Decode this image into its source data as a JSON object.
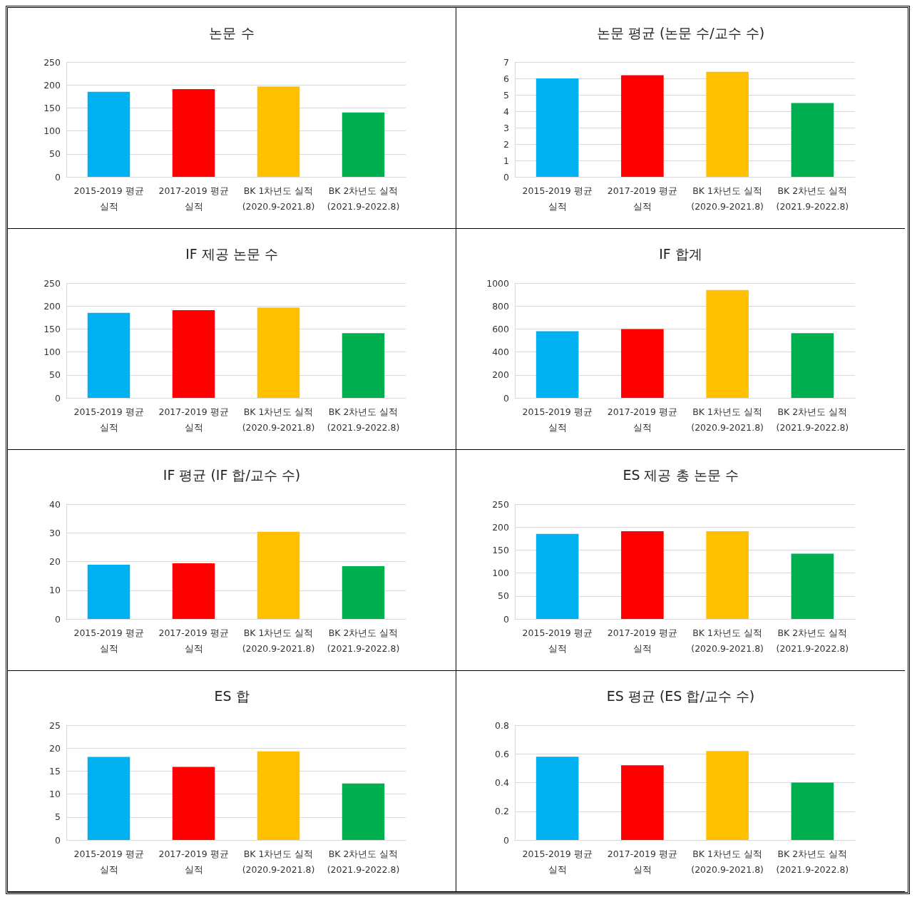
{
  "chart_data": [
    {
      "type": "bar",
      "title": "논문 수",
      "categories": [
        "2015-2019 평균\n실적",
        "2017-2019 평균\n실적",
        "BK 1차년도 실적\n(2020.9-2021.8)",
        "BK 2차년도 실적\n(2021.9-2022.8)"
      ],
      "values": [
        185,
        191,
        197,
        140
      ],
      "colors": [
        "#00b0f0",
        "#ff0000",
        "#ffc000",
        "#00b050"
      ],
      "ylim": [
        0,
        250
      ],
      "yticks": [
        0,
        50,
        100,
        150,
        200,
        250
      ],
      "grid": "y"
    },
    {
      "type": "bar",
      "title": "논문 평균 (논문 수/교수 수)",
      "categories": [
        "2015-2019 평균\n실적",
        "2017-2019 평균\n실적",
        "BK 1차년도 실적\n(2020.9-2021.8)",
        "BK 2차년도 실적\n(2021.9-2022.8)"
      ],
      "values": [
        6.0,
        6.2,
        6.4,
        4.5
      ],
      "colors": [
        "#00b0f0",
        "#ff0000",
        "#ffc000",
        "#00b050"
      ],
      "ylim": [
        0,
        7
      ],
      "yticks": [
        0,
        1,
        2,
        3,
        4,
        5,
        6,
        7
      ],
      "grid": "y"
    },
    {
      "type": "bar",
      "title": "IF 제공 논문 수",
      "categories": [
        "2015-2019 평균\n실적",
        "2017-2019 평균\n실적",
        "BK 1차년도 실적\n(2020.9-2021.8)",
        "BK 2차년도 실적\n(2021.9-2022.8)"
      ],
      "values": [
        185,
        191,
        197,
        141
      ],
      "colors": [
        "#00b0f0",
        "#ff0000",
        "#ffc000",
        "#00b050"
      ],
      "ylim": [
        0,
        250
      ],
      "yticks": [
        0,
        50,
        100,
        150,
        200,
        250
      ],
      "grid": "y"
    },
    {
      "type": "bar",
      "title": "IF 합계",
      "categories": [
        "2015-2019 평균\n실적",
        "2017-2019 평균\n실적",
        "BK 1차년도 실적\n(2020.9-2021.8)",
        "BK 2차년도 실적\n(2021.9-2022.8)"
      ],
      "values": [
        580,
        600,
        940,
        563
      ],
      "colors": [
        "#00b0f0",
        "#ff0000",
        "#ffc000",
        "#00b050"
      ],
      "ylim": [
        0,
        1000
      ],
      "yticks": [
        0,
        200,
        400,
        600,
        800,
        1000
      ],
      "grid": "y"
    },
    {
      "type": "bar",
      "title": "IF 평균 (IF 합/교수 수)",
      "categories": [
        "2015-2019 평균\n실적",
        "2017-2019 평균\n실적",
        "BK 1차년도 실적\n(2020.9-2021.8)",
        "BK 2차년도 실적\n(2021.9-2022.8)"
      ],
      "values": [
        18.9,
        19.4,
        30.4,
        18.4
      ],
      "colors": [
        "#00b0f0",
        "#ff0000",
        "#ffc000",
        "#00b050"
      ],
      "ylim": [
        0,
        40
      ],
      "yticks": [
        0,
        10,
        20,
        30,
        40
      ],
      "grid": "y"
    },
    {
      "type": "bar",
      "title": "ES 제공 총 논문 수",
      "categories": [
        "2015-2019 평균\n실적",
        "2017-2019 평균\n실적",
        "BK 1차년도 실적\n(2020.9-2021.8)",
        "BK 2차년도 실적\n(2021.9-2022.8)"
      ],
      "values": [
        185,
        191,
        191,
        142
      ],
      "colors": [
        "#00b0f0",
        "#ff0000",
        "#ffc000",
        "#00b050"
      ],
      "ylim": [
        0,
        250
      ],
      "yticks": [
        0,
        50,
        100,
        150,
        200,
        250
      ],
      "grid": "y"
    },
    {
      "type": "bar",
      "title": "ES 합",
      "categories": [
        "2015-2019 평균\n실적",
        "2017-2019 평균\n실적",
        "BK 1차년도 실적\n(2020.9-2021.8)",
        "BK 2차년도 실적\n(2021.9-2022.8)"
      ],
      "values": [
        18.1,
        15.9,
        19.3,
        12.3
      ],
      "colors": [
        "#00b0f0",
        "#ff0000",
        "#ffc000",
        "#00b050"
      ],
      "ylim": [
        0,
        25
      ],
      "yticks": [
        0,
        5,
        10,
        15,
        20,
        25
      ],
      "grid": "y"
    },
    {
      "type": "bar",
      "title": "ES 평균 (ES 합/교수 수)",
      "categories": [
        "2015-2019 평균\n실적",
        "2017-2019 평균\n실적",
        "BK 1차년도 실적\n(2020.9-2021.8)",
        "BK 2차년도 실적\n(2021.9-2022.8)"
      ],
      "values": [
        0.58,
        0.52,
        0.62,
        0.4
      ],
      "colors": [
        "#00b0f0",
        "#ff0000",
        "#ffc000",
        "#00b050"
      ],
      "ylim": [
        0,
        0.8
      ],
      "yticks": [
        0,
        0.2,
        0.4,
        0.6,
        0.8
      ],
      "grid": "y"
    }
  ]
}
